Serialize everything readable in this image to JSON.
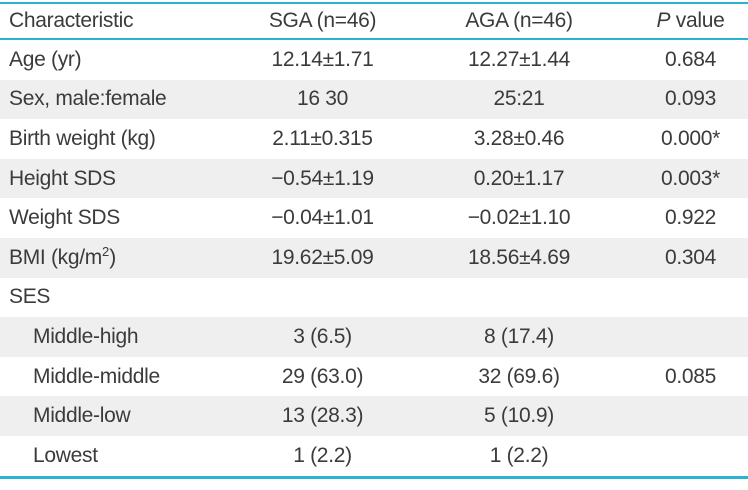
{
  "colors": {
    "accent": "#2bb3d4",
    "stripe": "#efefef",
    "text": "#3b3b3b"
  },
  "table": {
    "header": {
      "characteristic": "Characteristic",
      "sga": "SGA (n=46)",
      "aga": "AGA (n=46)",
      "p_italic": "P",
      "p_rest": " value"
    },
    "rows": [
      {
        "label": "Age (yr)",
        "sga": "12.14±1.71",
        "aga": "12.27±1.44",
        "p": "0.684",
        "indent": false
      },
      {
        "label": "Sex, male:female",
        "sga": "16 30",
        "aga": "25:21",
        "p": "0.093",
        "indent": false
      },
      {
        "label": "Birth weight (kg)",
        "sga": "2.11±0.315",
        "aga": "3.28±0.46",
        "p": "0.000*",
        "indent": false
      },
      {
        "label": "Height SDS",
        "sga": "−0.54±1.19",
        "aga": "0.20±1.17",
        "p": "0.003*",
        "indent": false
      },
      {
        "label": "Weight SDS",
        "sga": "−0.04±1.01",
        "aga": "−0.02±1.10",
        "p": "0.922",
        "indent": false
      },
      {
        "label_pre": "BMI (kg/m",
        "sup": "2",
        "label_post": ")",
        "sga": "19.62±5.09",
        "aga": "18.56±4.69",
        "p": "0.304",
        "indent": false
      },
      {
        "label": "SES",
        "sga": "",
        "aga": "",
        "p": "",
        "indent": false
      },
      {
        "label": "Middle-high",
        "sga": "3 (6.5)",
        "aga": "8 (17.4)",
        "p": "",
        "indent": true
      },
      {
        "label": "Middle-middle",
        "sga": "29 (63.0)",
        "aga": "32 (69.6)",
        "p": "0.085",
        "indent": true
      },
      {
        "label": "Middle-low",
        "sga": "13 (28.3)",
        "aga": "5 (10.9)",
        "p": "",
        "indent": true
      },
      {
        "label": "Lowest",
        "sga": "1 (2.2)",
        "aga": "1 (2.2)",
        "p": "",
        "indent": true
      }
    ]
  }
}
